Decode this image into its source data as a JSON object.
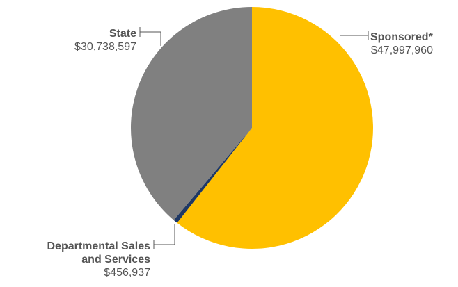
{
  "chart_data": {
    "type": "pie",
    "title": "",
    "slices": [
      {
        "label": "Sponsored*",
        "label_lines": [
          "Sponsored*"
        ],
        "value_label": "$47,997,960",
        "value": 47997960,
        "color": "#FFC000"
      },
      {
        "label": "Departmental Sales and Services",
        "label_lines": [
          "Departmental Sales",
          "and Services"
        ],
        "value_label": "$456,937",
        "value": 456937,
        "color": "#1F3864"
      },
      {
        "label": "State",
        "label_lines": [
          "State"
        ],
        "value_label": "$30,738,597",
        "value": 30738597,
        "color": "#808080"
      }
    ],
    "start_angle": "12 o'clock",
    "direction": "clockwise",
    "legend": "none"
  }
}
